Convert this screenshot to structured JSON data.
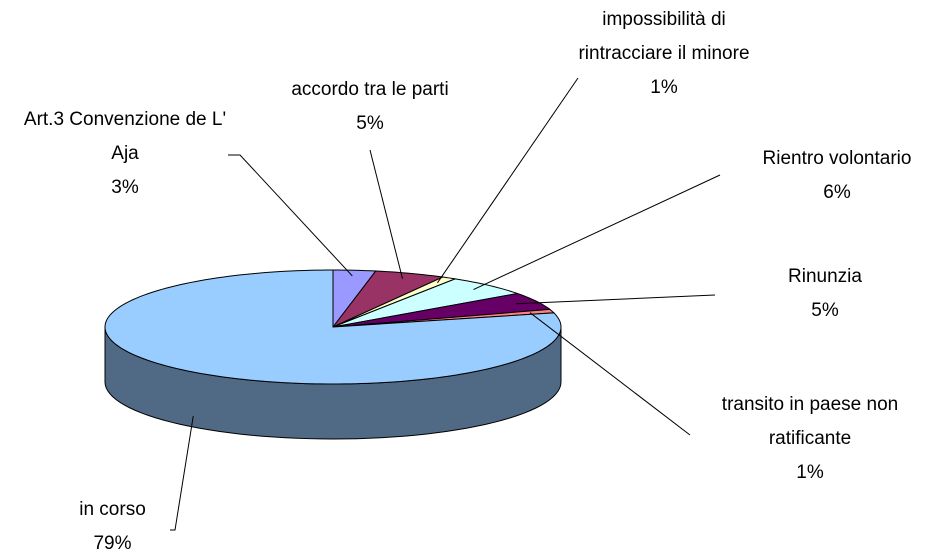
{
  "chart_data": {
    "type": "pie3d",
    "categories": [
      "Art.3 Convenzione de L' Aja",
      "accordo tra le parti",
      "impossibilità di rintracciare il minore",
      "Rientro volontario",
      "Rinunzia",
      "transito in paese non ratificante",
      "in corso"
    ],
    "values": [
      3,
      5,
      1,
      6,
      5,
      1,
      79
    ],
    "value_labels": [
      "3%",
      "5%",
      "1%",
      "6%",
      "5%",
      "1%",
      "79%"
    ],
    "colors": [
      "#9999ff",
      "#993366",
      "#ffffcc",
      "#ccffff",
      "#660066",
      "#ff8080",
      "#99ccff"
    ]
  }
}
